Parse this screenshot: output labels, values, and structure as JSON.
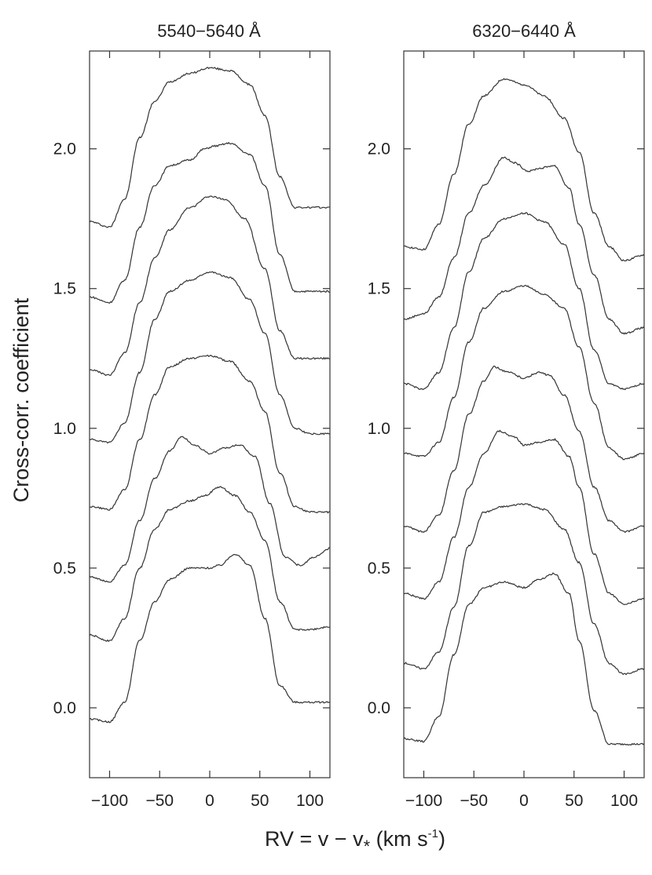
{
  "figure": {
    "ylabel": "Cross-corr. coefficient",
    "xlabel_main": "RV = v − v",
    "xlabel_sub": "*",
    "xlabel_units": " (km s",
    "xlabel_sup": "-1",
    "xlabel_close": ")"
  },
  "chart_data": [
    {
      "type": "line",
      "title": "5540−5640 Å",
      "xlabel": "RV = v − v* (km s-1)",
      "ylabel": "Cross-corr. coefficient",
      "xlim": [
        -120,
        120
      ],
      "ylim": [
        -0.25,
        2.35
      ],
      "x_ticks": [
        -100,
        -50,
        0,
        50,
        100
      ],
      "x_tick_labels": [
        "−100",
        "−50",
        "0",
        "50",
        "100"
      ],
      "y_ticks": [
        0.0,
        0.5,
        1.0,
        1.5,
        2.0
      ],
      "y_tick_labels": [
        "0.0",
        "0.5",
        "1.0",
        "1.5",
        "2.0"
      ],
      "grid": false,
      "series": [
        {
          "offset": 1.74,
          "profile": [
            [
              -120,
              0.0
            ],
            [
              -100,
              -0.02
            ],
            [
              -85,
              0.08
            ],
            [
              -70,
              0.3
            ],
            [
              -55,
              0.43
            ],
            [
              -40,
              0.5
            ],
            [
              -20,
              0.53
            ],
            [
              0,
              0.55
            ],
            [
              20,
              0.54
            ],
            [
              40,
              0.49
            ],
            [
              55,
              0.38
            ],
            [
              70,
              0.16
            ],
            [
              85,
              0.05
            ],
            [
              100,
              0.05
            ],
            [
              120,
              0.05
            ]
          ]
        },
        {
          "offset": 1.47,
          "profile": [
            [
              -120,
              0.0
            ],
            [
              -100,
              -0.02
            ],
            [
              -85,
              0.06
            ],
            [
              -70,
              0.25
            ],
            [
              -55,
              0.4
            ],
            [
              -40,
              0.47
            ],
            [
              -20,
              0.49
            ],
            [
              -5,
              0.53
            ],
            [
              5,
              0.54
            ],
            [
              20,
              0.55
            ],
            [
              40,
              0.51
            ],
            [
              55,
              0.4
            ],
            [
              70,
              0.15
            ],
            [
              85,
              0.02
            ],
            [
              100,
              0.02
            ],
            [
              120,
              0.02
            ]
          ]
        },
        {
          "offset": 1.21,
          "profile": [
            [
              -120,
              0.0
            ],
            [
              -100,
              -0.02
            ],
            [
              -85,
              0.06
            ],
            [
              -70,
              0.24
            ],
            [
              -55,
              0.4
            ],
            [
              -40,
              0.5
            ],
            [
              -20,
              0.58
            ],
            [
              0,
              0.62
            ],
            [
              15,
              0.61
            ],
            [
              35,
              0.54
            ],
            [
              55,
              0.36
            ],
            [
              70,
              0.14
            ],
            [
              85,
              0.04
            ],
            [
              100,
              0.04
            ],
            [
              120,
              0.04
            ]
          ]
        },
        {
          "offset": 0.96,
          "profile": [
            [
              -120,
              0.0
            ],
            [
              -100,
              -0.01
            ],
            [
              -85,
              0.06
            ],
            [
              -70,
              0.24
            ],
            [
              -55,
              0.43
            ],
            [
              -40,
              0.53
            ],
            [
              -20,
              0.57
            ],
            [
              0,
              0.6
            ],
            [
              20,
              0.58
            ],
            [
              40,
              0.5
            ],
            [
              55,
              0.38
            ],
            [
              70,
              0.16
            ],
            [
              85,
              0.04
            ],
            [
              100,
              0.02
            ],
            [
              120,
              0.02
            ]
          ]
        },
        {
          "offset": 0.72,
          "profile": [
            [
              -120,
              0.0
            ],
            [
              -100,
              -0.01
            ],
            [
              -85,
              0.06
            ],
            [
              -70,
              0.24
            ],
            [
              -55,
              0.4
            ],
            [
              -40,
              0.5
            ],
            [
              -20,
              0.53
            ],
            [
              0,
              0.54
            ],
            [
              20,
              0.52
            ],
            [
              40,
              0.45
            ],
            [
              55,
              0.34
            ],
            [
              70,
              0.12
            ],
            [
              85,
              0.0
            ],
            [
              100,
              -0.02
            ],
            [
              120,
              -0.02
            ]
          ]
        },
        {
          "offset": 0.47,
          "profile": [
            [
              -120,
              0.0
            ],
            [
              -100,
              -0.02
            ],
            [
              -85,
              0.04
            ],
            [
              -70,
              0.2
            ],
            [
              -55,
              0.35
            ],
            [
              -40,
              0.45
            ],
            [
              -28,
              0.5
            ],
            [
              -15,
              0.47
            ],
            [
              0,
              0.44
            ],
            [
              15,
              0.46
            ],
            [
              30,
              0.47
            ],
            [
              45,
              0.43
            ],
            [
              60,
              0.26
            ],
            [
              75,
              0.07
            ],
            [
              90,
              0.04
            ],
            [
              105,
              0.07
            ],
            [
              120,
              0.1
            ]
          ]
        },
        {
          "offset": 0.26,
          "profile": [
            [
              -120,
              0.0
            ],
            [
              -100,
              -0.02
            ],
            [
              -85,
              0.06
            ],
            [
              -70,
              0.24
            ],
            [
              -55,
              0.38
            ],
            [
              -40,
              0.45
            ],
            [
              -20,
              0.48
            ],
            [
              -5,
              0.5
            ],
            [
              10,
              0.53
            ],
            [
              25,
              0.5
            ],
            [
              40,
              0.44
            ],
            [
              55,
              0.34
            ],
            [
              70,
              0.12
            ],
            [
              85,
              0.02
            ],
            [
              100,
              0.02
            ],
            [
              120,
              0.03
            ]
          ]
        },
        {
          "offset": -0.04,
          "profile": [
            [
              -120,
              0.0
            ],
            [
              -100,
              -0.01
            ],
            [
              -85,
              0.06
            ],
            [
              -70,
              0.28
            ],
            [
              -55,
              0.42
            ],
            [
              -40,
              0.5
            ],
            [
              -20,
              0.54
            ],
            [
              0,
              0.54
            ],
            [
              10,
              0.55
            ],
            [
              25,
              0.59
            ],
            [
              40,
              0.55
            ],
            [
              55,
              0.36
            ],
            [
              70,
              0.12
            ],
            [
              85,
              0.06
            ],
            [
              100,
              0.06
            ],
            [
              120,
              0.06
            ]
          ]
        }
      ]
    },
    {
      "type": "line",
      "title": "6320−6440 Å",
      "xlabel": "RV = v − v* (km s-1)",
      "ylabel": "",
      "xlim": [
        -120,
        120
      ],
      "ylim": [
        -0.25,
        2.35
      ],
      "x_ticks": [
        -100,
        -50,
        0,
        50,
        100
      ],
      "x_tick_labels": [
        "−100",
        "−50",
        "0",
        "50",
        "100"
      ],
      "y_ticks": [
        0.0,
        0.5,
        1.0,
        1.5,
        2.0
      ],
      "y_tick_labels": [
        "0.0",
        "0.5",
        "1.0",
        "1.5",
        "2.0"
      ],
      "grid": false,
      "series": [
        {
          "offset": 1.65,
          "profile": [
            [
              -120,
              0.0
            ],
            [
              -100,
              -0.01
            ],
            [
              -85,
              0.08
            ],
            [
              -70,
              0.26
            ],
            [
              -55,
              0.44
            ],
            [
              -40,
              0.54
            ],
            [
              -20,
              0.6
            ],
            [
              0,
              0.58
            ],
            [
              20,
              0.54
            ],
            [
              40,
              0.46
            ],
            [
              55,
              0.34
            ],
            [
              70,
              0.12
            ],
            [
              85,
              0.0
            ],
            [
              100,
              -0.05
            ],
            [
              120,
              -0.03
            ]
          ]
        },
        {
          "offset": 1.39,
          "profile": [
            [
              -120,
              0.0
            ],
            [
              -100,
              0.02
            ],
            [
              -85,
              0.08
            ],
            [
              -70,
              0.22
            ],
            [
              -55,
              0.38
            ],
            [
              -40,
              0.48
            ],
            [
              -20,
              0.58
            ],
            [
              -10,
              0.56
            ],
            [
              5,
              0.53
            ],
            [
              15,
              0.54
            ],
            [
              30,
              0.55
            ],
            [
              45,
              0.47
            ],
            [
              55,
              0.34
            ],
            [
              70,
              0.16
            ],
            [
              85,
              0.0
            ],
            [
              100,
              -0.05
            ],
            [
              120,
              -0.03
            ]
          ]
        },
        {
          "offset": 1.16,
          "profile": [
            [
              -120,
              0.0
            ],
            [
              -100,
              -0.02
            ],
            [
              -85,
              0.04
            ],
            [
              -70,
              0.2
            ],
            [
              -55,
              0.4
            ],
            [
              -40,
              0.52
            ],
            [
              -20,
              0.59
            ],
            [
              0,
              0.61
            ],
            [
              20,
              0.58
            ],
            [
              40,
              0.5
            ],
            [
              55,
              0.34
            ],
            [
              70,
              0.12
            ],
            [
              85,
              0.0
            ],
            [
              100,
              -0.02
            ],
            [
              120,
              0.0
            ]
          ]
        },
        {
          "offset": 0.91,
          "profile": [
            [
              -120,
              0.0
            ],
            [
              -100,
              -0.01
            ],
            [
              -85,
              0.04
            ],
            [
              -70,
              0.2
            ],
            [
              -55,
              0.4
            ],
            [
              -40,
              0.52
            ],
            [
              -20,
              0.58
            ],
            [
              0,
              0.6
            ],
            [
              20,
              0.57
            ],
            [
              40,
              0.52
            ],
            [
              55,
              0.38
            ],
            [
              70,
              0.18
            ],
            [
              85,
              0.02
            ],
            [
              100,
              -0.02
            ],
            [
              120,
              0.0
            ]
          ]
        },
        {
          "offset": 0.65,
          "profile": [
            [
              -120,
              0.0
            ],
            [
              -100,
              -0.02
            ],
            [
              -85,
              0.04
            ],
            [
              -70,
              0.2
            ],
            [
              -55,
              0.4
            ],
            [
              -40,
              0.52
            ],
            [
              -30,
              0.57
            ],
            [
              -15,
              0.55
            ],
            [
              0,
              0.53
            ],
            [
              15,
              0.55
            ],
            [
              25,
              0.54
            ],
            [
              40,
              0.47
            ],
            [
              55,
              0.34
            ],
            [
              70,
              0.14
            ],
            [
              85,
              0.02
            ],
            [
              100,
              -0.02
            ],
            [
              120,
              0.0
            ]
          ]
        },
        {
          "offset": 0.41,
          "profile": [
            [
              -120,
              0.0
            ],
            [
              -100,
              -0.02
            ],
            [
              -85,
              0.04
            ],
            [
              -70,
              0.2
            ],
            [
              -55,
              0.38
            ],
            [
              -40,
              0.5
            ],
            [
              -25,
              0.58
            ],
            [
              -10,
              0.56
            ],
            [
              0,
              0.53
            ],
            [
              15,
              0.54
            ],
            [
              30,
              0.55
            ],
            [
              45,
              0.49
            ],
            [
              55,
              0.38
            ],
            [
              70,
              0.14
            ],
            [
              85,
              0.0
            ],
            [
              100,
              -0.04
            ],
            [
              120,
              -0.02
            ]
          ]
        },
        {
          "offset": 0.16,
          "profile": [
            [
              -120,
              0.0
            ],
            [
              -100,
              -0.02
            ],
            [
              -85,
              0.04
            ],
            [
              -70,
              0.2
            ],
            [
              -55,
              0.42
            ],
            [
              -40,
              0.54
            ],
            [
              -20,
              0.56
            ],
            [
              0,
              0.57
            ],
            [
              20,
              0.55
            ],
            [
              40,
              0.48
            ],
            [
              55,
              0.36
            ],
            [
              70,
              0.14
            ],
            [
              85,
              0.0
            ],
            [
              100,
              -0.04
            ],
            [
              120,
              -0.02
            ]
          ]
        },
        {
          "offset": -0.11,
          "profile": [
            [
              -120,
              0.0
            ],
            [
              -100,
              -0.01
            ],
            [
              -85,
              0.08
            ],
            [
              -70,
              0.3
            ],
            [
              -55,
              0.48
            ],
            [
              -40,
              0.54
            ],
            [
              -20,
              0.56
            ],
            [
              0,
              0.54
            ],
            [
              15,
              0.57
            ],
            [
              30,
              0.59
            ],
            [
              45,
              0.52
            ],
            [
              55,
              0.35
            ],
            [
              70,
              0.1
            ],
            [
              85,
              -0.02
            ],
            [
              100,
              -0.02
            ],
            [
              120,
              -0.02
            ]
          ]
        }
      ]
    }
  ]
}
